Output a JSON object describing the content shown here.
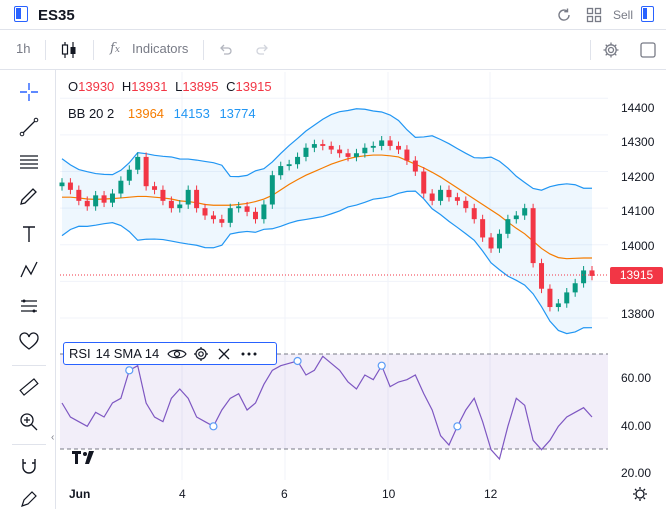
{
  "header": {
    "symbol": "ES35",
    "sell_label": "Sell"
  },
  "toolbar": {
    "interval": "1h",
    "indicators_label": "Indicators"
  },
  "legend": {
    "open_label": "O",
    "open": "13930",
    "high_label": "H",
    "high": "13931",
    "low_label": "L",
    "low": "13895",
    "close_label": "C",
    "close": "13915",
    "bb_label": "BB 20 2",
    "bb_basis": "13964",
    "bb_upper": "14153",
    "bb_lower": "13774"
  },
  "rsi_legend": {
    "label": "RSI",
    "params": "14 SMA 14"
  },
  "price_axis": {
    "ticks": [
      "14400",
      "14300",
      "14200",
      "14100",
      "14000",
      "13800"
    ],
    "last_price": "13915"
  },
  "rsi_axis": {
    "ticks": [
      "60.00",
      "40.00",
      "20.00"
    ]
  },
  "time_axis": {
    "ticks": [
      "Jun",
      "4",
      "6",
      "10",
      "12"
    ]
  },
  "colors": {
    "up": "#089981",
    "down": "#f23645",
    "bb_basis": "#f57c00",
    "bb_band": "#2196f3",
    "rsi": "#7e57c2",
    "accent": "#2962ff"
  },
  "chart_data": [
    {
      "type": "candlestick",
      "title": "",
      "ylim": [
        13740,
        14450
      ],
      "last_close": 13915,
      "series": [
        {
          "name": "ES35",
          "close": [
            14170,
            14150,
            14120,
            14105,
            14135,
            14115,
            14140,
            14175,
            14205,
            14240,
            14160,
            14150,
            14120,
            14100,
            14110,
            14150,
            14100,
            14080,
            14070,
            14060,
            14100,
            14105,
            14090,
            14070,
            14110,
            14190,
            14215,
            14220,
            14240,
            14265,
            14275,
            14270,
            14260,
            14250,
            14240,
            14250,
            14265,
            14270,
            14285,
            14270,
            14260,
            14230,
            14200,
            14140,
            14120,
            14150,
            14130,
            14120,
            14100,
            14070,
            14020,
            13990,
            14030,
            14070,
            14080,
            14100,
            13950,
            13880,
            13830,
            13840,
            13870,
            13895,
            13930,
            13915
          ]
        },
        {
          "name": "BB 20 2",
          "basis": [
            14130,
            14130,
            14128,
            14125,
            14124,
            14125,
            14126,
            14128,
            14130,
            14132,
            14132,
            14130,
            14128,
            14125,
            14120,
            14118,
            14115,
            14110,
            14108,
            14108,
            14108,
            14110,
            14113,
            14118,
            14125,
            14135,
            14150,
            14165,
            14178,
            14190,
            14200,
            14210,
            14220,
            14228,
            14235,
            14240,
            14243,
            14245,
            14245,
            14243,
            14240,
            14230,
            14220,
            14210,
            14198,
            14185,
            14170,
            14155,
            14140,
            14125,
            14110,
            14095,
            14080,
            14062,
            14045,
            14030,
            14010,
            13990,
            13975,
            13965,
            13962,
            13963,
            13964,
            13964
          ]
        }
      ]
    },
    {
      "type": "line",
      "title": "",
      "ylim": [
        15,
        75
      ],
      "series": [
        {
          "name": "RSI",
          "values": [
            48,
            42,
            40,
            38,
            44,
            42,
            48,
            50,
            62,
            64,
            48,
            42,
            40,
            50,
            54,
            50,
            42,
            40,
            38,
            45,
            50,
            52,
            45,
            48,
            56,
            62,
            64,
            65,
            66,
            60,
            62,
            68,
            65,
            62,
            57,
            54,
            60,
            58,
            64,
            55,
            57,
            58,
            60,
            52,
            45,
            34,
            30,
            38,
            45,
            50,
            40,
            28,
            24,
            38,
            50,
            47,
            32,
            28,
            32,
            38,
            42,
            44,
            46,
            42
          ]
        }
      ],
      "overbought": 70,
      "oversold": 30
    }
  ]
}
